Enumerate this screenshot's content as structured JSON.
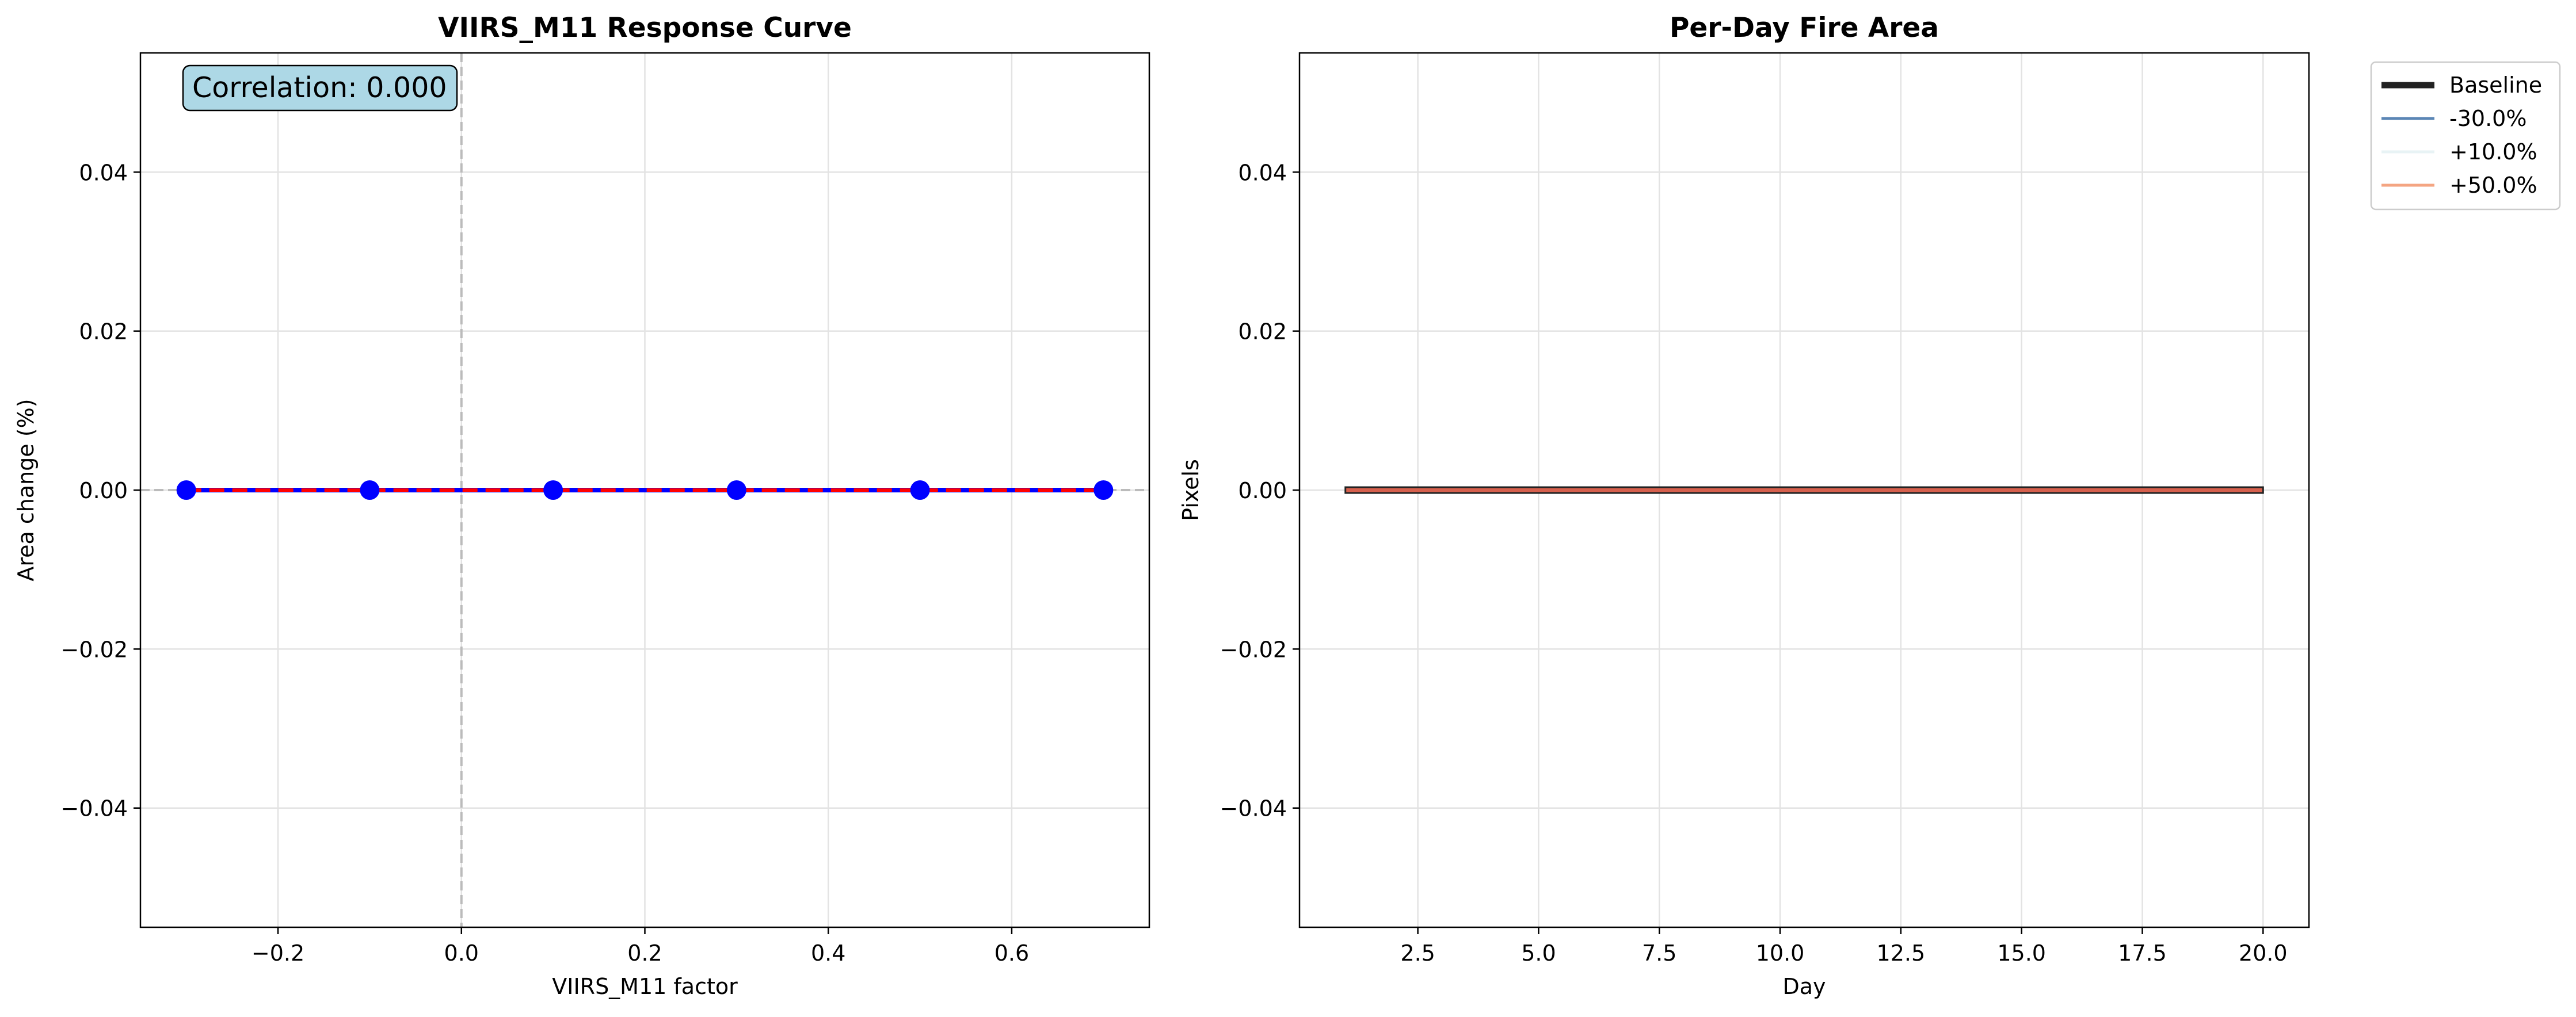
{
  "chart_data": [
    {
      "type": "line",
      "title": "VIIRS_M11 Response Curve",
      "xlabel": "VIIRS_M11 factor",
      "ylabel": "Area change (%)",
      "xlim": [
        -0.35,
        0.75
      ],
      "ylim": [
        -0.055,
        0.055
      ],
      "xticks": [
        -0.2,
        0.0,
        0.2,
        0.4,
        0.6
      ],
      "xtick_labels": [
        "−0.2",
        "0.0",
        "0.2",
        "0.4",
        "0.6"
      ],
      "yticks": [
        0.04,
        0.02,
        0.0,
        -0.02,
        -0.04
      ],
      "ytick_labels": [
        "0.04",
        "0.02",
        "0.00",
        "−0.02",
        "−0.04"
      ],
      "grid": true,
      "series": [
        {
          "x": [
            -0.3,
            -0.1,
            0.1,
            0.3,
            0.5,
            0.7
          ],
          "y": [
            0,
            0,
            0,
            0,
            0,
            0
          ],
          "color": "#0000ff",
          "marker": "circle"
        }
      ],
      "fit_line": {
        "x": [
          -0.3,
          0.7
        ],
        "y": [
          0,
          0
        ],
        "color": "#ff0000",
        "style": "dashed"
      },
      "reference_lines": {
        "h": 0,
        "v": 0,
        "color": "#bbbbbb",
        "style": "dashed"
      },
      "annotation": "Correlation: 0.000",
      "annotation_bg": "#add8e6"
    },
    {
      "type": "line",
      "title": "Per-Day Fire Area",
      "xlabel": "Day",
      "ylabel": "Pixels",
      "xlim": [
        0.05,
        20.95
      ],
      "ylim": [
        -0.055,
        0.055
      ],
      "xticks": [
        2.5,
        5.0,
        7.5,
        10.0,
        12.5,
        15.0,
        17.5,
        20.0
      ],
      "xtick_labels": [
        "2.5",
        "5.0",
        "7.5",
        "10.0",
        "12.5",
        "15.0",
        "17.5",
        "20.0"
      ],
      "yticks": [
        0.04,
        0.02,
        0.0,
        -0.02,
        -0.04
      ],
      "ytick_labels": [
        "0.04",
        "0.02",
        "0.00",
        "−0.02",
        "−0.04"
      ],
      "grid": true,
      "series": [
        {
          "name": "Baseline",
          "x": [
            1,
            20
          ],
          "y": [
            0,
            0
          ],
          "color": "#222222",
          "width": "thick"
        },
        {
          "name": "-30.0%",
          "x": [
            1,
            20
          ],
          "y": [
            0,
            0
          ],
          "color": "#5b86b5"
        },
        {
          "name": "+10.0%",
          "x": [
            1,
            20
          ],
          "y": [
            0,
            0
          ],
          "color": "#e8f3f5"
        },
        {
          "name": "+50.0%",
          "x": [
            1,
            20
          ],
          "y": [
            0,
            0
          ],
          "color": "#f4a582"
        }
      ],
      "visible_line_color": "#d6604d",
      "legend": "outside-upper-right"
    }
  ]
}
